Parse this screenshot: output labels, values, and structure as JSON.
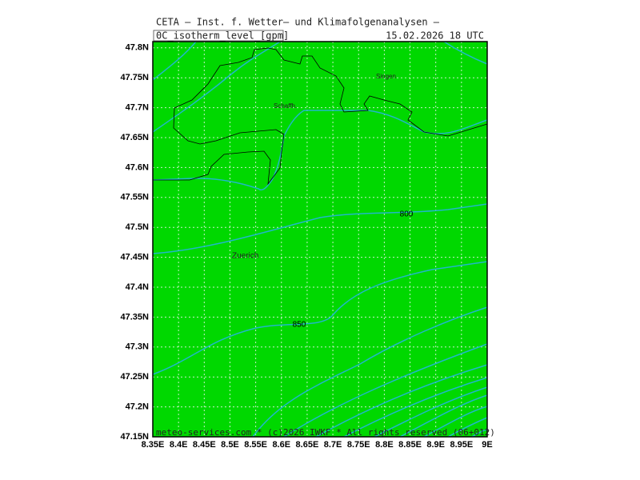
{
  "header": {
    "title": "CETA — Inst. f. Wetter— und Klimafolgenanalysen —",
    "variable": "0C_isotherm_level_[gpm]",
    "datetime": "15.02.2026  18 UTC"
  },
  "axes": {
    "lat_labels": [
      "47.15N",
      "47.2N",
      "47.25N",
      "47.3N",
      "47.35N",
      "47.4N",
      "47.45N",
      "47.5N",
      "47.55N",
      "47.6N",
      "47.65N",
      "47.7N",
      "47.75N",
      "47.8N"
    ],
    "lon_labels": [
      "8.35E",
      "8.4E",
      "8.45E",
      "8.5E",
      "8.55E",
      "8.6E",
      "8.65E",
      "8.7E",
      "8.75E",
      "8.8E",
      "8.85E",
      "8.9E",
      "8.95E",
      "9E"
    ]
  },
  "places": [
    "Singen",
    "Schaffh.",
    "Zuerich"
  ],
  "contour_labels": [
    "800",
    "850"
  ],
  "footer": "meteo-services.com * (c)2026 IWKF * All rights reserved (06+012)"
}
